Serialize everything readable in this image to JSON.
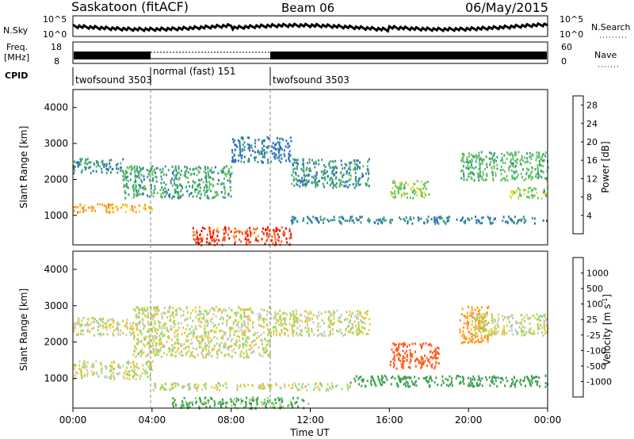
{
  "header": {
    "station": "Saskatoon (fitACF)",
    "beam": "Beam 06",
    "date": "06/May/2015"
  },
  "top_panel": {
    "nsky_label": "N.Sky",
    "nsky_ticks": [
      "10^5",
      "10^0"
    ],
    "nsearch_label": "N.Search",
    "nsearch_ticks": [
      "10^5",
      "10^0"
    ],
    "freq_label_1": "Freq.",
    "freq_label_2": "[MHz]",
    "freq_ticks": [
      "18",
      "8"
    ],
    "nave_label": "Nave",
    "nave_ticks": [
      "60",
      "0"
    ],
    "cpid_label": "CPID",
    "cpid_segments": [
      {
        "label": "twofsound 3503",
        "start_hour": 0.0,
        "end_hour": 4.0
      },
      {
        "label": "normal (fast) 151",
        "start_hour": 4.0,
        "end_hour": 10.0
      },
      {
        "label": "twofsound 3503",
        "start_hour": 10.0,
        "end_hour": 24.0
      }
    ]
  },
  "chart_data": [
    {
      "type": "heatmap",
      "name": "power",
      "xlabel": "Time UT",
      "ylabel": "Slant Range [km]",
      "ylim": [
        180,
        4500
      ],
      "yticks": [
        "1000",
        "2000",
        "3000",
        "4000"
      ],
      "xticks": [
        "00:00",
        "04:00",
        "08:00",
        "12:00",
        "16:00",
        "20:00",
        "00:00"
      ],
      "colorbar_label": "Power [dB]",
      "colorbar_ticks": [
        "4",
        "8",
        "12",
        "16",
        "20",
        "24",
        "28"
      ],
      "colorbar_range": [
        0,
        30
      ],
      "bands": [
        {
          "t0": 0.0,
          "t1": 4.0,
          "r0": 1100,
          "r1": 1350,
          "level": 20
        },
        {
          "t0": 0.0,
          "t1": 2.5,
          "r0": 2200,
          "r1": 2600,
          "level": 9
        },
        {
          "t0": 2.5,
          "t1": 8.0,
          "r0": 1500,
          "r1": 2400,
          "level": 10
        },
        {
          "t0": 8.0,
          "t1": 11.0,
          "r0": 2500,
          "r1": 3200,
          "level": 7
        },
        {
          "t0": 11.0,
          "t1": 15.0,
          "r0": 1800,
          "r1": 2600,
          "level": 9
        },
        {
          "t0": 6.0,
          "t1": 11.0,
          "r0": 200,
          "r1": 700,
          "level": 25
        },
        {
          "t0": 11.0,
          "t1": 24.0,
          "r0": 800,
          "r1": 1000,
          "level": 8
        },
        {
          "t0": 16.0,
          "t1": 18.0,
          "r0": 1500,
          "r1": 2000,
          "level": 14
        },
        {
          "t0": 19.5,
          "t1": 24.0,
          "r0": 2000,
          "r1": 2800,
          "level": 12
        },
        {
          "t0": 22.0,
          "t1": 24.0,
          "r0": 1500,
          "r1": 1800,
          "level": 14
        }
      ]
    },
    {
      "type": "heatmap",
      "name": "velocity",
      "xlabel": "Time UT",
      "ylabel": "Slant Range [km]",
      "ylim": [
        180,
        4500
      ],
      "yticks": [
        "1000",
        "2000",
        "3000",
        "4000"
      ],
      "xticks": [
        "00:00",
        "04:00",
        "08:00",
        "12:00",
        "16:00",
        "20:00",
        "00:00"
      ],
      "colorbar_label": "Velocity [m s^-1]",
      "colorbar_ticks": [
        "1000",
        "500",
        "100",
        "25",
        "-25",
        "-100",
        "-500",
        "-1000"
      ],
      "colorbar_range": [
        -1000,
        1000
      ],
      "bands": [
        {
          "t0": 0.0,
          "t1": 3.0,
          "r0": 2200,
          "r1": 2700,
          "level": 0
        },
        {
          "t0": 0.0,
          "t1": 4.0,
          "r0": 1000,
          "r1": 1500,
          "level": 0
        },
        {
          "t0": 3.0,
          "t1": 10.0,
          "r0": 1600,
          "r1": 3000,
          "level": 0
        },
        {
          "t0": 4.0,
          "t1": 14.0,
          "r0": 700,
          "r1": 900,
          "level": 0
        },
        {
          "t0": 5.0,
          "t1": 12.0,
          "r0": 200,
          "r1": 500,
          "level": 150
        },
        {
          "t0": 10.0,
          "t1": 15.0,
          "r0": 2200,
          "r1": 2900,
          "level": 0
        },
        {
          "t0": 14.0,
          "t1": 24.0,
          "r0": 800,
          "r1": 1100,
          "level": 200
        },
        {
          "t0": 16.0,
          "t1": 18.5,
          "r0": 1300,
          "r1": 2000,
          "level": -600
        },
        {
          "t0": 19.5,
          "t1": 21.0,
          "r0": 2000,
          "r1": 3000,
          "level": -400
        },
        {
          "t0": 20.0,
          "t1": 24.0,
          "r0": 2200,
          "r1": 2800,
          "level": 0
        }
      ]
    }
  ],
  "colors": {
    "power_scale": [
      "#1a1aff",
      "#2a6ac8",
      "#3a9a7a",
      "#64c85a",
      "#e6d82a",
      "#ff9a1a",
      "#ff5a1a",
      "#e60000"
    ],
    "velocity_scale": [
      "#e60000",
      "#ff5a1a",
      "#ff9a1a",
      "#e6c83a",
      "#c8c8c8",
      "#96d864",
      "#3aa050",
      "#2a6ac8",
      "#1a1aff"
    ],
    "axis": "#000000"
  }
}
